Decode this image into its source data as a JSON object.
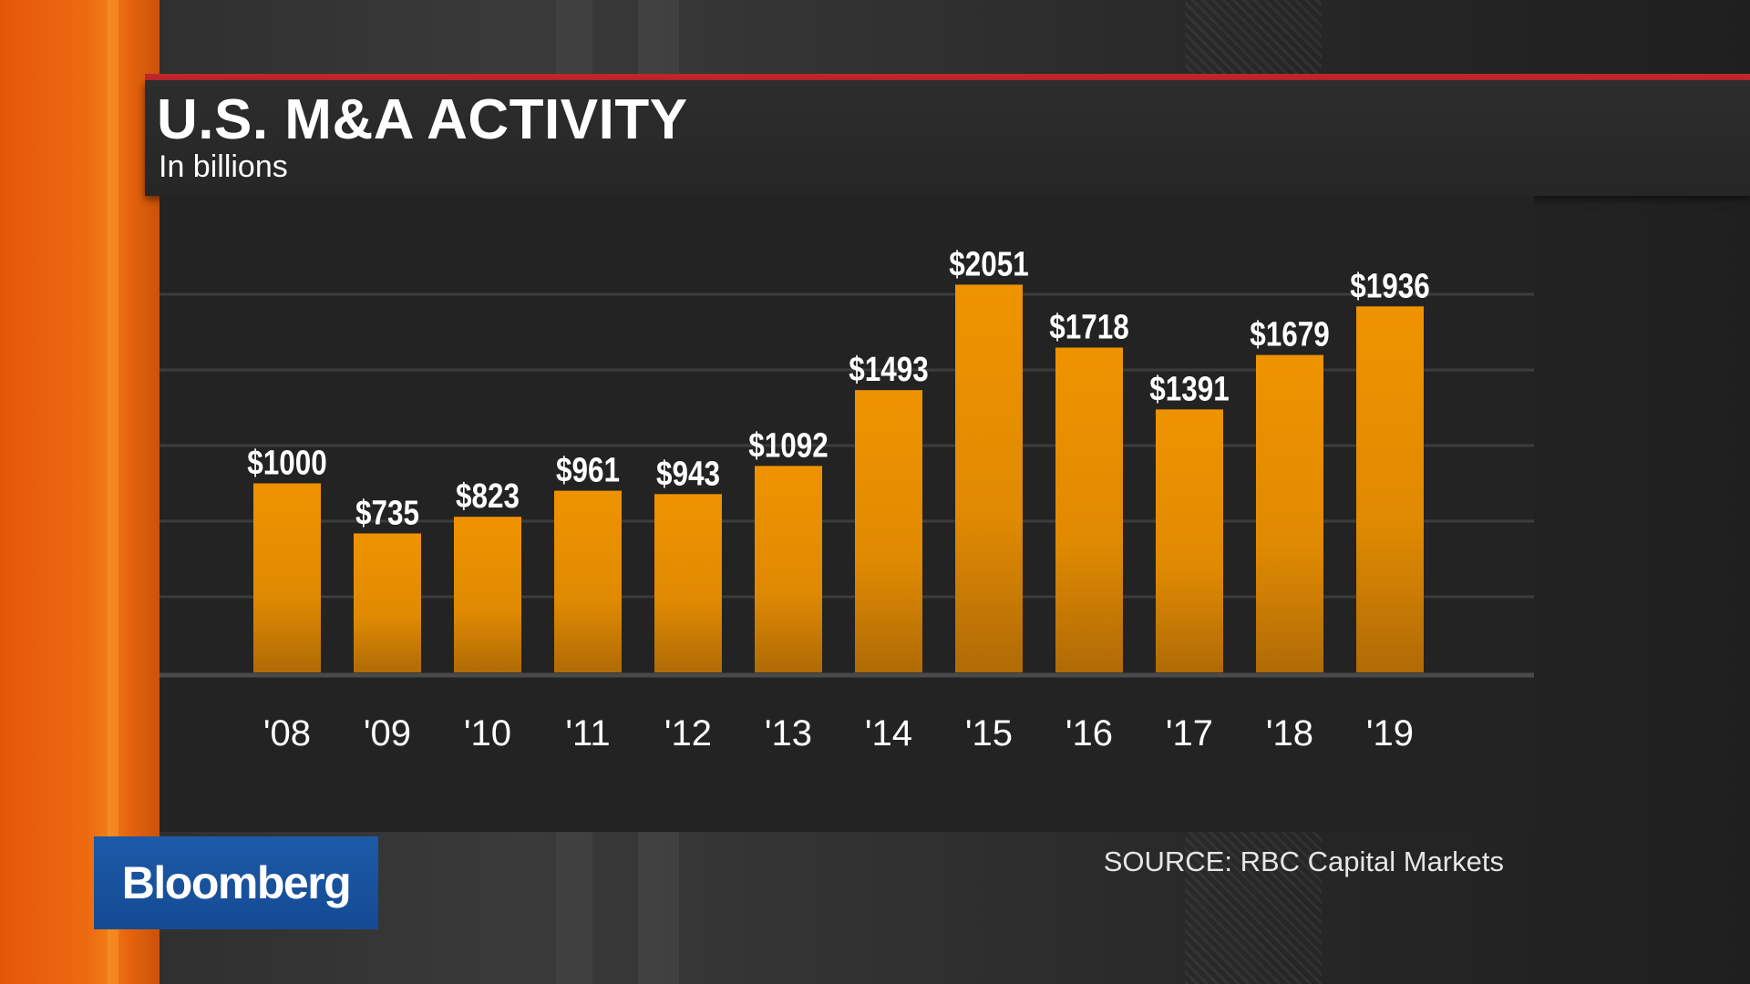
{
  "header": {
    "title": "U.S. M&A ACTIVITY",
    "subtitle": "In billions"
  },
  "footer": {
    "source": "SOURCE: RBC Capital Markets",
    "logo_text": "Bloomberg"
  },
  "colors": {
    "bar_top": "#ef9300",
    "bar_bottom": "#b06b06",
    "accent_red": "#c1272d",
    "brand_orange": "#ee6a10",
    "logo_blue": "#1c5aa8"
  },
  "chart_data": {
    "type": "bar",
    "title": "U.S. M&A ACTIVITY",
    "subtitle": "In billions",
    "categories": [
      "'08",
      "'09",
      "'10",
      "'11",
      "'12",
      "'13",
      "'14",
      "'15",
      "'16",
      "'17",
      "'18",
      "'19"
    ],
    "values": [
      1000,
      735,
      823,
      961,
      943,
      1092,
      1493,
      2051,
      1718,
      1391,
      1679,
      1936
    ],
    "data_labels": [
      "$1000",
      "$735",
      "$823",
      "$961",
      "$943",
      "$1092",
      "$1493",
      "$2051",
      "$1718",
      "$1391",
      "$1679",
      "$1936"
    ],
    "xlabel": "",
    "ylabel": "",
    "ylim": [
      0,
      2000
    ],
    "grid": true,
    "legend": "none"
  }
}
